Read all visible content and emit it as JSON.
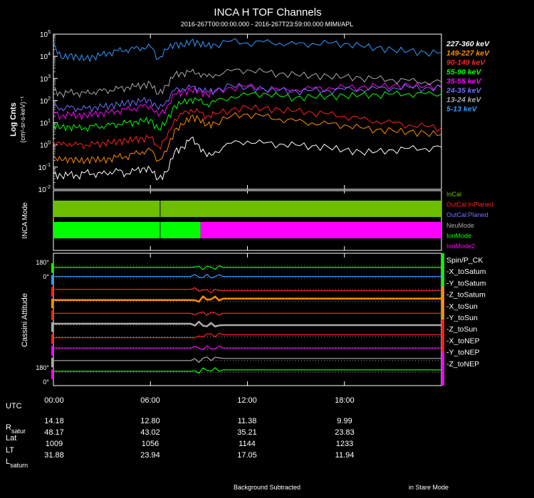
{
  "header": {
    "title": "INCA H TOF Channels",
    "subtitle": "2016-267T00:00:00.000 - 2016-267T23:59:00.000 MIMI/APL"
  },
  "colors": {
    "background": "#000000",
    "axis": "#ffffff",
    "grid": "#aaaaaa"
  },
  "chart_data": [
    {
      "type": "line",
      "title": "INCA H TOF Channels",
      "ylabel": "Log Cnts",
      "yunits": "(cm²-sr-s-keV)⁻¹",
      "yscale": "log",
      "ylim": [
        0.01,
        100000
      ],
      "y_tick_labels": [
        "10-2",
        "10-1",
        "100",
        "101",
        "102",
        "103",
        "104",
        "105"
      ],
      "y_tick_exponents": [
        -2,
        -1,
        0,
        1,
        2,
        3,
        4,
        5
      ],
      "xlim": [
        0,
        24
      ],
      "x_tick_hours": [
        0,
        6,
        12,
        18
      ],
      "x": [
        0,
        0.5,
        1,
        1.5,
        2,
        2.5,
        3,
        3.5,
        4,
        4.5,
        5,
        5.5,
        6,
        6.5,
        7,
        7.5,
        8,
        8.5,
        9,
        9.5,
        10,
        11,
        12,
        13,
        14,
        15,
        16,
        17,
        18,
        19,
        20,
        21,
        22,
        23,
        24
      ],
      "series": [
        {
          "name": "227-360 keV",
          "color": "#ffffff",
          "values": [
            0.05,
            0.04,
            0.05,
            0.04,
            0.06,
            0.05,
            0.05,
            0.06,
            0.07,
            0.05,
            0.07,
            0.09,
            0.08,
            0.03,
            0.06,
            0.5,
            0.8,
            2,
            1,
            0.3,
            0.5,
            1.2,
            1.5,
            1.2,
            1.1,
            1,
            0.9,
            0.8,
            0.6,
            0.5,
            0.5,
            0.6,
            0.7,
            0.7,
            0.8
          ]
        },
        {
          "name": "149-227 keV",
          "color": "#ff8c00",
          "values": [
            0.3,
            0.2,
            0.25,
            0.2,
            0.2,
            0.25,
            0.2,
            0.25,
            0.3,
            0.3,
            0.4,
            0.5,
            0.6,
            0.2,
            0.5,
            5,
            8,
            20,
            15,
            8,
            10,
            20,
            25,
            20,
            15,
            12,
            10,
            9,
            8,
            6,
            5,
            4.5,
            4,
            3.5,
            3
          ]
        },
        {
          "name": "90-149 keV",
          "color": "#ff2020",
          "values": [
            1.5,
            1,
            1.2,
            1,
            1,
            1.1,
            1.2,
            1.3,
            1.5,
            1.6,
            1.8,
            2,
            2.2,
            0.8,
            2,
            15,
            25,
            40,
            30,
            20,
            25,
            40,
            50,
            45,
            40,
            35,
            30,
            25,
            20,
            15,
            12,
            10,
            8,
            7,
            6
          ]
        },
        {
          "name": "55-90 keV",
          "color": "#00ff00",
          "values": [
            8,
            6,
            7,
            6,
            6,
            7,
            7,
            8,
            9,
            10,
            11,
            12,
            14,
            5,
            12,
            60,
            80,
            120,
            100,
            70,
            90,
            150,
            180,
            220,
            160,
            140,
            150,
            160,
            170,
            180,
            190,
            200,
            210,
            200,
            200
          ]
        },
        {
          "name": "35-55 keV",
          "color": "#ff00ff",
          "values": [
            30,
            20,
            25,
            22,
            22,
            25,
            28,
            30,
            35,
            40,
            45,
            55,
            60,
            20,
            50,
            200,
            250,
            300,
            280,
            200,
            250,
            400,
            450,
            350,
            300,
            320,
            350,
            380,
            400,
            420,
            450,
            480,
            500,
            450,
            450
          ]
        },
        {
          "name": "24-35 keV",
          "color": "#7070ff",
          "values": [
            60,
            45,
            50,
            45,
            45,
            50,
            55,
            60,
            70,
            80,
            90,
            100,
            110,
            40,
            100,
            300,
            350,
            400,
            380,
            250,
            300,
            500,
            400,
            350,
            300,
            280,
            280,
            300,
            320,
            330,
            350,
            380,
            400,
            380,
            380
          ]
        },
        {
          "name": "13-24 keV",
          "color": "#aaaaaa",
          "values": [
            300,
            200,
            250,
            220,
            220,
            250,
            280,
            300,
            350,
            400,
            450,
            500,
            600,
            200,
            500,
            1500,
            1800,
            2000,
            1800,
            1200,
            1500,
            2200,
            2500,
            2000,
            1700,
            1500,
            1400,
            1300,
            1200,
            1100,
            1000,
            900,
            800,
            700,
            700
          ]
        },
        {
          "name": "5-13 keV",
          "color": "#3399ff",
          "values": [
            40000,
            8000,
            12000,
            9000,
            8000,
            10000,
            12000,
            15000,
            18000,
            20000,
            22000,
            25000,
            28000,
            8000,
            20000,
            40000,
            30000,
            50000,
            40000,
            30000,
            35000,
            50000,
            40000,
            45000,
            40000,
            35000,
            38000,
            40000,
            38000,
            30000,
            25000,
            20000,
            18000,
            15000,
            15000
          ]
        }
      ]
    },
    {
      "type": "bar",
      "title": "INCA Mode",
      "ylabel": "INCA Mode",
      "legend": [
        {
          "name": "InCal",
          "color": "#6cbf00"
        },
        {
          "name": "OutCal:InPlaned",
          "color": "#ff2020"
        },
        {
          "name": "OutCal:Planed",
          "color": "#7070ff"
        },
        {
          "name": "NeuMode",
          "color": "#aaaaaa"
        },
        {
          "name": "IonMode",
          "color": "#00ff00"
        },
        {
          "name": "IonMode2",
          "color": "#ff00ff"
        }
      ],
      "rows": [
        {
          "segments": [
            {
              "start": 0,
              "end": 24,
              "mode": "InCal",
              "color": "#6cbf00"
            }
          ]
        },
        {
          "segments": [
            {
              "start": 0,
              "end": 9.1,
              "mode": "IonMode",
              "color": "#00ff00"
            },
            {
              "start": 9.1,
              "end": 24,
              "mode": "IonMode2",
              "color": "#ff00ff"
            }
          ]
        }
      ],
      "marker_hour": 6.6
    },
    {
      "type": "line",
      "title": "Cassini Attitude",
      "ylabel": "Cassini Attitude",
      "tick_labels": [
        "180°",
        "0°",
        "180°",
        "0°"
      ],
      "series": [
        {
          "name": "Spin/P_CK",
          "color": "#00ff00",
          "level": 0.2,
          "step": 0
        },
        {
          "name": "-X_toSatum",
          "color": "#3399ff",
          "level": 0.6,
          "step": 0
        },
        {
          "name": "-Y_toSatum",
          "color": "#ff2020",
          "level": 0.45,
          "step": -0.1
        },
        {
          "name": "-Z_toSatum",
          "color": "#ff8c00",
          "level": 0.6,
          "step": 0.1
        },
        {
          "name": "-X_toSun",
          "color": "#ff2020",
          "level": 0.4,
          "step": 0
        },
        {
          "name": "-Y_toSun",
          "color": "#aaaaaa",
          "level": 0.6,
          "step": -0.1
        },
        {
          "name": "-Z_toSun",
          "color": "#ff2020",
          "level": 0.3,
          "step": 0.2
        },
        {
          "name": "-X_toNEP",
          "color": "#ff00ff",
          "level": 0.5,
          "step": 0
        },
        {
          "name": "-Y_toNEP",
          "color": "#aaaaaa",
          "level": 0.4,
          "step": 0.15
        },
        {
          "name": "-Z_toNEP",
          "color": "#00ff00",
          "level": 0.55,
          "step": 0.1
        }
      ],
      "left_bar_colors": [
        "#00ff00",
        "#3399ff",
        "#ff2020",
        "#ff8c00",
        "#ff2020",
        "#aaaaaa",
        "#ff2020",
        "#ff00ff",
        "#aaaaaa",
        "#ff00ff"
      ],
      "right_bar_colors": [
        "#00ff00",
        "#ff8c00",
        "#ff2020",
        "#ff00ff"
      ]
    }
  ],
  "ephemeris": {
    "utc_label": "UTC",
    "time_ticks": [
      "00:00",
      "06:00",
      "12:00",
      "18:00"
    ],
    "rows": [
      {
        "label": "R",
        "sub": "satur",
        "values": [
          "14.18",
          "12.80",
          "11.38",
          "9.99"
        ]
      },
      {
        "label": "Lat",
        "sub": "",
        "values": [
          "48.17",
          "43.02",
          "35.21",
          "23.83"
        ]
      },
      {
        "label": "LT",
        "sub": "",
        "values": [
          "1009",
          "1056",
          "1144",
          "1233"
        ]
      },
      {
        "label": "L",
        "sub": "saturn",
        "values": [
          "31.88",
          "23.94",
          "17.05",
          "11.94"
        ]
      }
    ]
  },
  "footer": {
    "left": "Background Subtracted",
    "right": "in Stare Mode"
  }
}
